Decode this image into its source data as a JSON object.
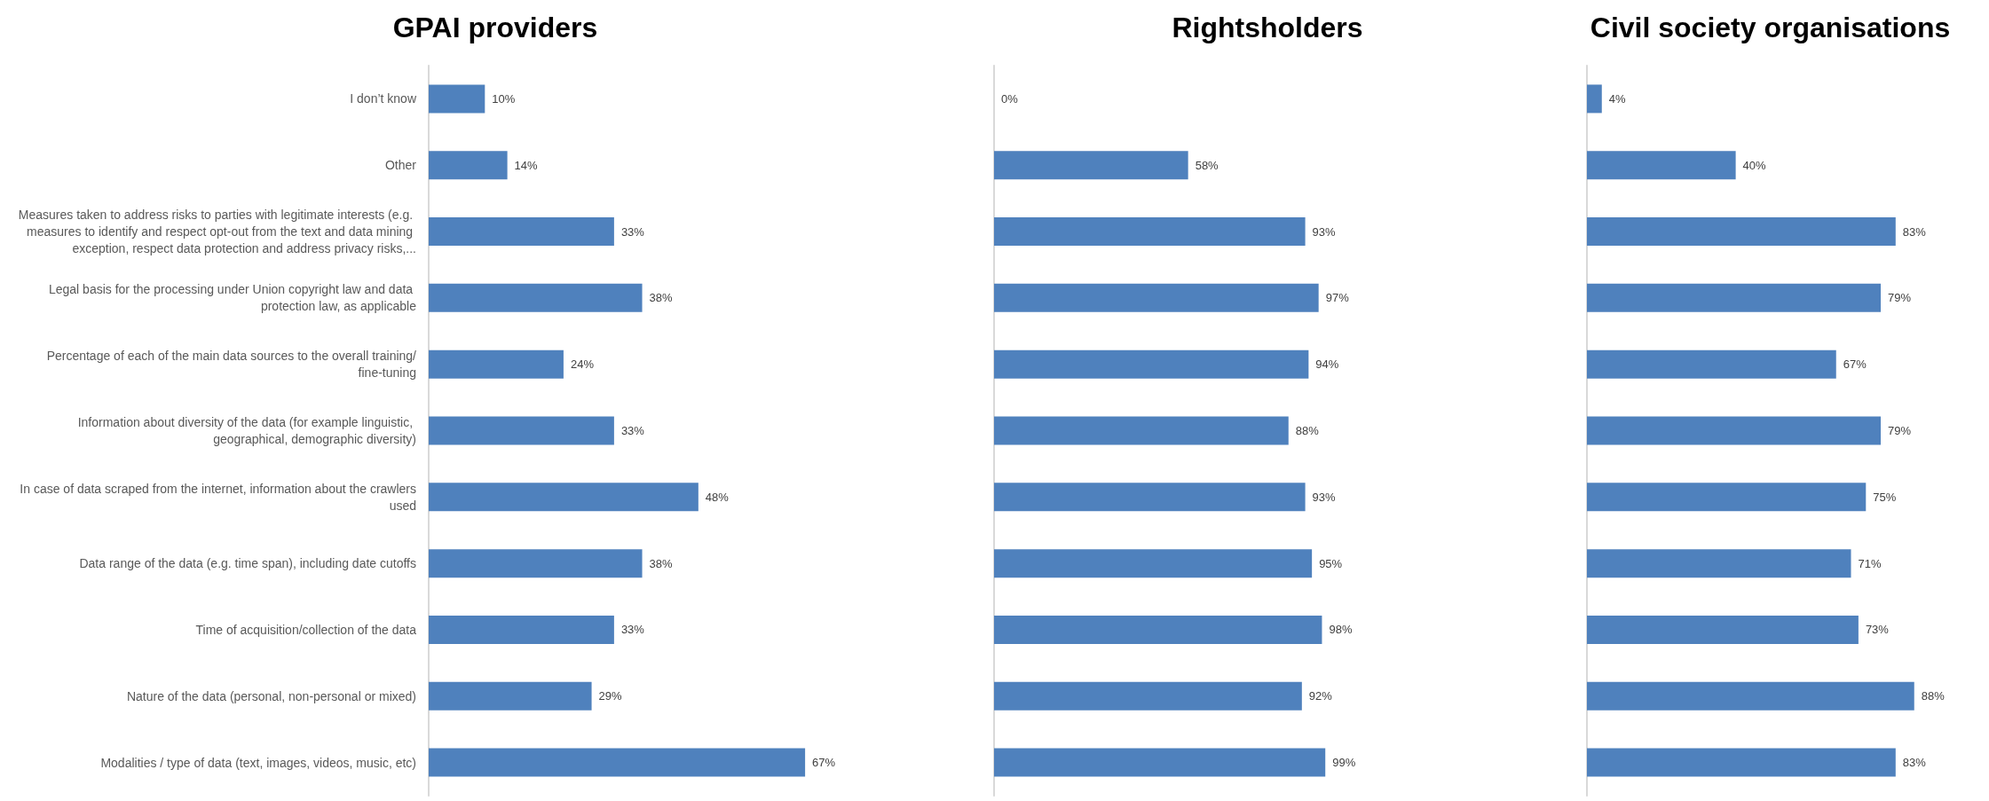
{
  "chart_data": [
    {
      "type": "bar",
      "orientation": "horizontal",
      "title": "GPAI providers",
      "categories": [
        "I don’t know",
        "Other",
        "Measures taken to address risks to parties with legitimate interests (e.g. measures to identify and respect opt-out from the text and data mining exception, respect data protection and address privacy risks,...",
        "Legal basis for the processing under Union copyright law and data protection law, as applicable",
        "Percentage of each of the main data sources to the overall training/fine-tuning",
        "Information about diversity of the data (for example linguistic, geographical, demographic diversity)",
        "In case of data scraped from the internet, information about the crawlers used",
        "Data range of the data (e.g. time span), including date cutoffs",
        "Time of acquisition/collection of the data",
        "Nature of the data (personal, non-personal or mixed)",
        "Modalities / type of data (text, images, videos, music, etc)"
      ],
      "values": [
        10,
        14,
        33,
        38,
        24,
        33,
        48,
        38,
        33,
        29,
        67
      ],
      "value_labels": [
        "10%",
        "14%",
        "33%",
        "38%",
        "24%",
        "33%",
        "48%",
        "38%",
        "33%",
        "29%",
        "67%"
      ],
      "color": "#4f81bd",
      "tick_labels": "y"
    },
    {
      "type": "bar",
      "orientation": "horizontal",
      "title": "Rightsholders",
      "categories": [
        null,
        null,
        null,
        null,
        null,
        null,
        null,
        null,
        null,
        null,
        null
      ],
      "values": [
        0,
        58,
        93,
        97,
        94,
        88,
        93,
        95,
        98,
        92,
        99
      ],
      "value_labels": [
        "0%",
        "58%",
        "93%",
        "97%",
        "94%",
        "88%",
        "93%",
        "95%",
        "98%",
        "92%",
        "99%"
      ],
      "color": "#4f81bd",
      "tick_labels": false
    },
    {
      "type": "bar",
      "orientation": "horizontal",
      "title": "Civil society organisations",
      "categories": [
        null,
        null,
        null,
        null,
        null,
        null,
        null,
        null,
        null,
        null,
        null
      ],
      "values": [
        4,
        40,
        83,
        79,
        67,
        79,
        75,
        71,
        73,
        88,
        83
      ],
      "value_labels": [
        "4%",
        "40%",
        "83%",
        "79%",
        "67%",
        "79%",
        "75%",
        "71%",
        "73%",
        "88%",
        "83%"
      ],
      "color": "#4f81bd",
      "tick_labels": false
    }
  ]
}
